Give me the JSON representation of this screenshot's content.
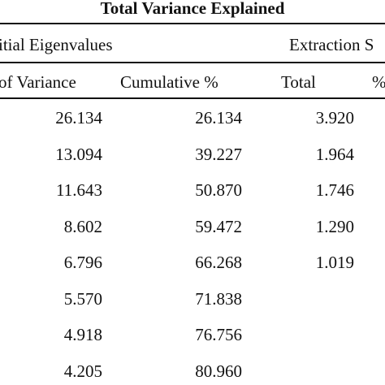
{
  "table": {
    "title": "Total Variance Explained",
    "groups": {
      "initial": "itial Eigenvalues",
      "extraction": "Extraction S"
    },
    "headers": {
      "variance": "of Variance",
      "cumulative": "Cumulative %",
      "total": "Total",
      "pct": "%"
    },
    "rows": [
      {
        "variance": "26.134",
        "cumulative": "26.134",
        "total": "3.920"
      },
      {
        "variance": "13.094",
        "cumulative": "39.227",
        "total": "1.964"
      },
      {
        "variance": "11.643",
        "cumulative": "50.870",
        "total": "1.746"
      },
      {
        "variance": "8.602",
        "cumulative": "59.472",
        "total": "1.290"
      },
      {
        "variance": "6.796",
        "cumulative": "66.268",
        "total": "1.019"
      },
      {
        "variance": "5.570",
        "cumulative": "71.838",
        "total": ""
      },
      {
        "variance": "4.918",
        "cumulative": "76.756",
        "total": ""
      },
      {
        "variance": "4.205",
        "cumulative": "80.960",
        "total": ""
      }
    ]
  }
}
